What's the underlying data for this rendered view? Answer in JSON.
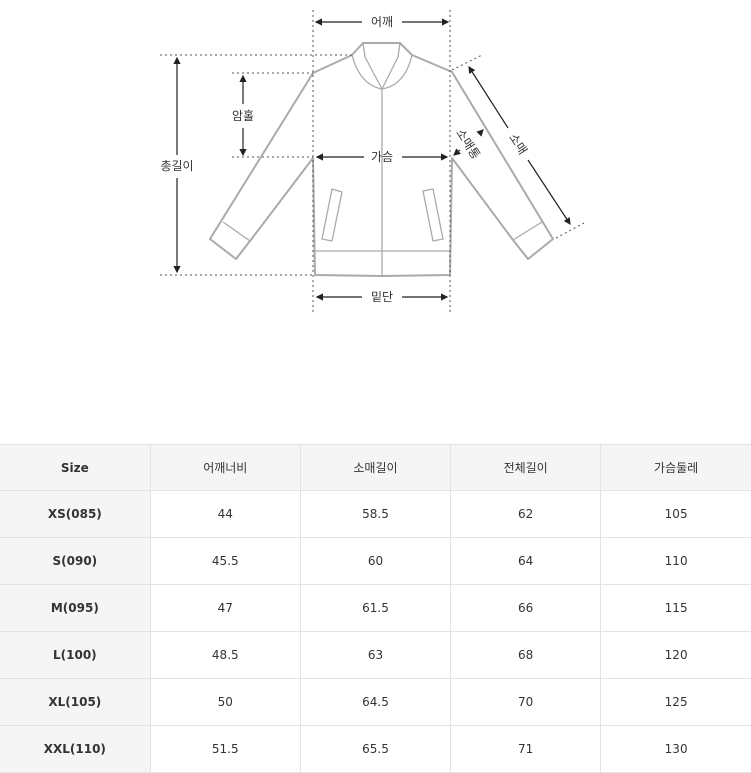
{
  "diagram": {
    "labels": {
      "shoulder": "어깨",
      "armhole": "암홀",
      "total_length": "총길이",
      "chest": "가슴",
      "sleeve": "소매",
      "sleeve_width": "소매통",
      "hem": "밑단"
    }
  },
  "table": {
    "headers": [
      "Size",
      "어깨너비",
      "소매길이",
      "전체길이",
      "가슴둘레"
    ],
    "rows": [
      [
        "XS(085)",
        "44",
        "58.5",
        "62",
        "105"
      ],
      [
        "S(090)",
        "45.5",
        "60",
        "64",
        "110"
      ],
      [
        "M(095)",
        "47",
        "61.5",
        "66",
        "115"
      ],
      [
        "L(100)",
        "48.5",
        "63",
        "68",
        "120"
      ],
      [
        "XL(105)",
        "50",
        "64.5",
        "70",
        "125"
      ],
      [
        "XXL(110)",
        "51.5",
        "65.5",
        "71",
        "130"
      ]
    ]
  }
}
